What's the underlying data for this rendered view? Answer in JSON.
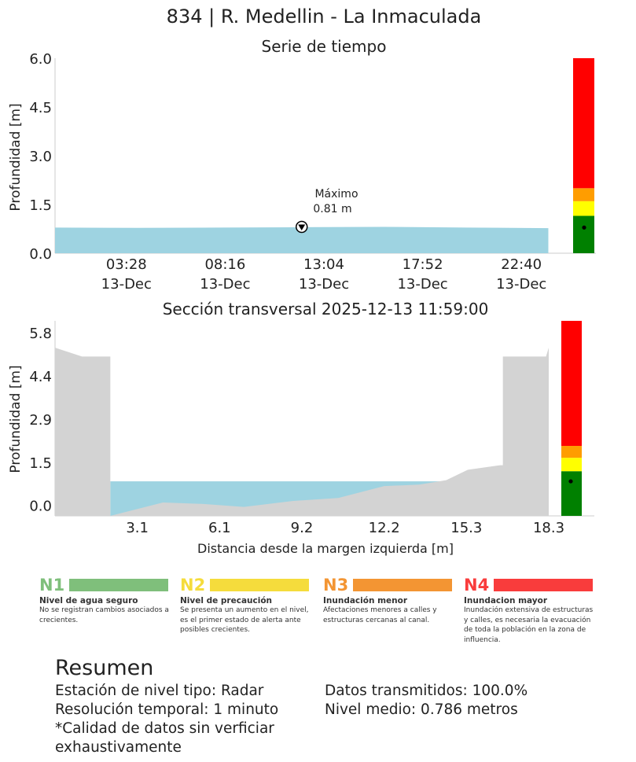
{
  "figure_title": "834 | R. Medellin - La Inmaculada",
  "chart_data": [
    {
      "type": "area",
      "title": "Serie de tiempo",
      "ylabel": "Profundidad [m]",
      "xlabel": "",
      "ylim": [
        0,
        6
      ],
      "yticks": [
        "0.0",
        "1.5",
        "3.0",
        "4.5",
        "6.0"
      ],
      "xticks": [
        {
          "time": "03:28",
          "date": "13-Dec"
        },
        {
          "time": "08:16",
          "date": "13-Dec"
        },
        {
          "time": "13:04",
          "date": "13-Dec"
        },
        {
          "time": "17:52",
          "date": "13-Dec"
        },
        {
          "time": "22:40",
          "date": "13-Dec"
        }
      ],
      "x_hours": [
        0,
        4,
        8,
        12,
        16,
        20,
        23.98
      ],
      "y": [
        0.79,
        0.78,
        0.79,
        0.8,
        0.81,
        0.79,
        0.77
      ],
      "color": "#9ed3e1",
      "max_annotation": {
        "label": "Máximo",
        "value_text": "0.81 m",
        "x_hours": 11.99,
        "y": 0.81
      },
      "threshold_bar": [
        {
          "level": "N1",
          "from": 0,
          "to": 1.15,
          "color": "#008000"
        },
        {
          "level": "N2",
          "from": 1.15,
          "to": 1.6,
          "color": "#ffff00"
        },
        {
          "level": "N3",
          "from": 1.6,
          "to": 2.0,
          "color": "#ff9d00"
        },
        {
          "level": "N4",
          "from": 2.0,
          "to": 6.0,
          "color": "#ff0000"
        }
      ],
      "current_level": 0.79
    },
    {
      "type": "area",
      "title": "Sección transversal 2025-12-13 11:59:00",
      "xlabel": "Distancia desde la margen izquierda [m]",
      "ylabel": "Profundidad [m]",
      "xlim": [
        0,
        18.3
      ],
      "ylim": [
        -0.35,
        6.2
      ],
      "xticks": [
        "3.1",
        "6.1",
        "9.2",
        "12.2",
        "15.3",
        "18.3"
      ],
      "xtick_values": [
        3.05,
        6.1,
        9.15,
        12.2,
        15.25,
        18.3
      ],
      "yticks": [
        "0.0",
        "1.5",
        "2.9",
        "4.4",
        "5.8"
      ],
      "ytick_values": [
        0,
        1.45,
        2.9,
        4.35,
        5.8
      ],
      "ground_x": [
        0,
        1.0,
        2.0,
        2.05,
        2.05,
        4.0,
        5.5,
        7.0,
        8.8,
        10.5,
        12.2,
        13.5,
        14.5,
        15.3,
        16.5,
        16.6,
        16.6,
        18.2,
        18.3
      ],
      "ground_y": [
        5.3,
        5.0,
        5.0,
        5.0,
        -0.35,
        0.1,
        0.05,
        -0.05,
        0.15,
        0.25,
        0.65,
        0.7,
        0.85,
        1.2,
        1.35,
        1.35,
        5.0,
        5.0,
        5.3
      ],
      "water_level": 0.81,
      "water_color": "#9ed3e1",
      "ground_color": "#d3d3d3",
      "threshold_bar": [
        {
          "level": "N1",
          "from": -0.35,
          "to": 1.15,
          "color": "#008000"
        },
        {
          "level": "N2",
          "from": 1.15,
          "to": 1.6,
          "color": "#ffff00"
        },
        {
          "level": "N3",
          "from": 1.6,
          "to": 2.0,
          "color": "#ff9d00"
        },
        {
          "level": "N4",
          "from": 2.0,
          "to": 6.2,
          "color": "#ff0000"
        }
      ],
      "current_level": 0.81
    }
  ],
  "legend": [
    {
      "code": "N1",
      "name": "Nivel de agua seguro",
      "desc": "No se registran cambios asociados a crecientes.",
      "color": "#7fbf7b"
    },
    {
      "code": "N2",
      "name": "Nivel de precaución",
      "desc": "Se presenta un aumento en el nivel, es el primer estado de alerta ante posibles crecientes.",
      "color": "#f5dc3c"
    },
    {
      "code": "N3",
      "name": "Inundación menor",
      "desc": "Afectaciones menores a calles y estructuras cercanas al canal.",
      "color": "#f39533"
    },
    {
      "code": "N4",
      "name": "Inundacion mayor",
      "desc": "Inundación extensiva de estructuras y calles, es necesaria la evacuación de toda la población en la zona de influencia.",
      "color": "#f93c3c"
    }
  ],
  "summary": {
    "title": "Resumen",
    "line1": "Estación de nivel tipo: Radar",
    "line2": "Resolución temporal: 1 minuto",
    "line3": "*Calidad de datos sin verficiar exhaustivamente",
    "line4": "Datos transmitidos: 100.0%",
    "line5": "Nivel medio: 0.786 metros"
  }
}
